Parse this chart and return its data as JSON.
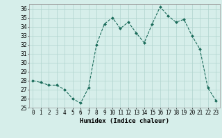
{
  "x": [
    0,
    1,
    2,
    3,
    4,
    5,
    6,
    7,
    8,
    9,
    10,
    11,
    12,
    13,
    14,
    15,
    16,
    17,
    18,
    19,
    20,
    21,
    22,
    23
  ],
  "y": [
    28.0,
    27.8,
    27.5,
    27.5,
    27.0,
    26.0,
    25.5,
    27.2,
    32.0,
    34.3,
    35.0,
    33.8,
    34.5,
    33.3,
    32.2,
    34.3,
    36.2,
    35.2,
    34.5,
    34.8,
    33.0,
    31.5,
    27.2,
    25.8
  ],
  "xlabel": "Humidex (Indice chaleur)",
  "line_color": "#1a6b5a",
  "marker_color": "#1a6b5a",
  "bg_color": "#d6eeea",
  "grid_color": "#b0d4ce",
  "ylim": [
    25,
    36.5
  ],
  "yticks": [
    25,
    26,
    27,
    28,
    29,
    30,
    31,
    32,
    33,
    34,
    35,
    36
  ],
  "xtick_labels": [
    "0",
    "1",
    "2",
    "3",
    "4",
    "5",
    "6",
    "7",
    "8",
    "9",
    "10",
    "11",
    "12",
    "13",
    "14",
    "15",
    "16",
    "17",
    "18",
    "19",
    "20",
    "21",
    "22",
    "23"
  ],
  "label_fontsize": 6.5,
  "tick_fontsize": 5.5
}
